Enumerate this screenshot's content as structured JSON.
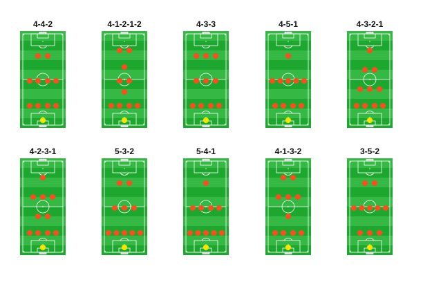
{
  "colors": {
    "grass_dark": "#1ea72f",
    "grass_light": "#36b845",
    "lines": "#ffffff",
    "player": "#f4511e",
    "goalkeeper": "#f5e400"
  },
  "formations": [
    {
      "label": "4-4-2",
      "lines": [
        [
          4,
          4,
          2
        ]
      ]
    },
    {
      "label": "4-1-2-1-2",
      "lines": [
        [
          4,
          1,
          2,
          1,
          2
        ]
      ]
    },
    {
      "label": "4-3-3",
      "lines": [
        [
          4,
          3,
          3
        ]
      ]
    },
    {
      "label": "4-5-1",
      "lines": [
        [
          4,
          5,
          1
        ]
      ]
    },
    {
      "label": "4-3-2-1",
      "lines": [
        [
          4,
          3,
          2,
          1
        ]
      ]
    },
    {
      "label": "4-2-3-1",
      "lines": [
        [
          4,
          2,
          3,
          1
        ]
      ]
    },
    {
      "label": "5-3-2",
      "lines": [
        [
          5,
          3,
          2
        ]
      ]
    },
    {
      "label": "5-4-1",
      "lines": [
        [
          5,
          4,
          1
        ]
      ]
    },
    {
      "label": "4-1-3-2",
      "lines": [
        [
          4,
          1,
          3,
          2
        ]
      ]
    },
    {
      "label": "3-5-2",
      "lines": [
        [
          3,
          5,
          2
        ]
      ]
    }
  ]
}
